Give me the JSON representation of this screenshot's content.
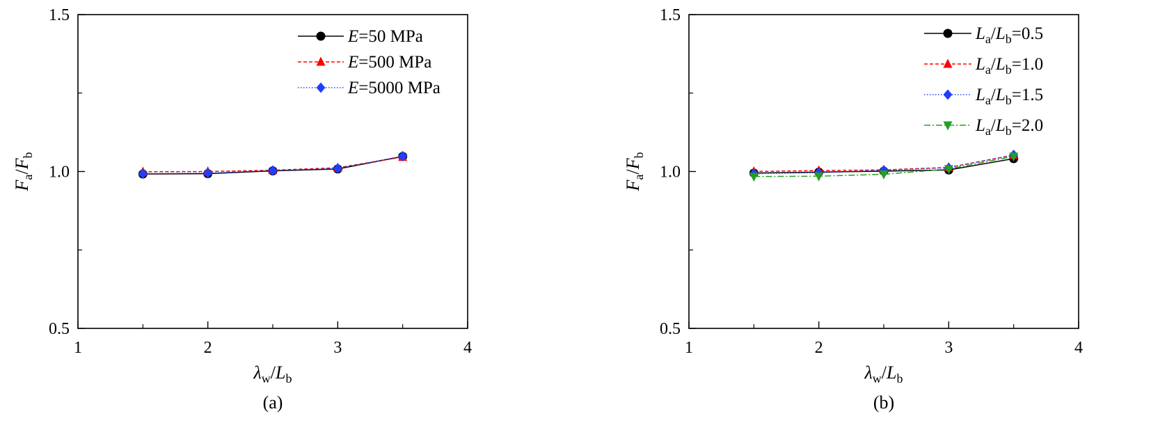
{
  "chart_data": [
    {
      "type": "line",
      "panel_label": "(a)",
      "xlim": [
        1,
        4
      ],
      "ylim": [
        0.5,
        1.5
      ],
      "xticks": [
        1,
        2,
        3,
        4
      ],
      "xtick_labels": [
        "1",
        "2",
        "3",
        "4"
      ],
      "yticks": [
        0.5,
        1.0,
        1.5
      ],
      "ytick_labels": [
        "0.5",
        "1.0",
        "1.5"
      ],
      "xlabel": {
        "main": "λ",
        "sub": "w",
        "mid": "/",
        "main2": "L",
        "sub2": "b"
      },
      "ylabel": {
        "main": "F",
        "sub": "a",
        "mid": "/",
        "main2": "F",
        "sub2": "b"
      },
      "legend_position": "top-right",
      "x": [
        1.5,
        2.0,
        2.5,
        3.0,
        3.5
      ],
      "series": [
        {
          "legend_italic": "E",
          "legend_rest": "=50 MPa",
          "marker": "circle",
          "line": "solid",
          "color": "#000000",
          "values": [
            0.992,
            0.993,
            1.002,
            1.008,
            1.048
          ]
        },
        {
          "legend_italic": "E",
          "legend_rest": "=500 MPa",
          "marker": "triangle-up",
          "line": "dashed",
          "color": "#ff0000",
          "values": [
            0.999,
            1.0,
            1.004,
            1.012,
            1.046
          ]
        },
        {
          "legend_italic": "E",
          "legend_rest": "=5000 MPa",
          "marker": "diamond",
          "line": "dotted",
          "color": "#1f3fff",
          "values": [
            0.993,
            0.995,
            1.003,
            1.01,
            1.049
          ]
        }
      ]
    },
    {
      "type": "line",
      "panel_label": "(b)",
      "xlim": [
        1,
        4
      ],
      "ylim": [
        0.5,
        1.5
      ],
      "xticks": [
        1,
        2,
        3,
        4
      ],
      "xtick_labels": [
        "1",
        "2",
        "3",
        "4"
      ],
      "yticks": [
        0.5,
        1.0,
        1.5
      ],
      "ytick_labels": [
        "0.5",
        "1.0",
        "1.5"
      ],
      "xlabel": {
        "main": "λ",
        "sub": "w",
        "mid": "/",
        "main2": "L",
        "sub2": "b"
      },
      "ylabel": {
        "main": "F",
        "sub": "a",
        "mid": "/",
        "main2": "F",
        "sub2": "b"
      },
      "legend_position": "top-right",
      "x": [
        1.5,
        2.0,
        2.5,
        3.0,
        3.5
      ],
      "series": [
        {
          "legend_ratio": [
            "L",
            "a",
            "/",
            "L",
            "b",
            "=0.5"
          ],
          "marker": "circle",
          "line": "solid",
          "color": "#000000",
          "values": [
            0.995,
            0.998,
            1.001,
            1.005,
            1.041
          ]
        },
        {
          "legend_ratio": [
            "L",
            "a",
            "/",
            "L",
            "b",
            "=1.0"
          ],
          "marker": "triangle-up",
          "line": "dashed",
          "color": "#ff0000",
          "values": [
            1.0,
            1.003,
            1.005,
            1.013,
            1.052
          ]
        },
        {
          "legend_ratio": [
            "L",
            "a",
            "/",
            "L",
            "b",
            "=1.5"
          ],
          "marker": "diamond",
          "line": "dotted",
          "color": "#1f3fff",
          "values": [
            0.993,
            0.996,
            1.004,
            1.012,
            1.053
          ]
        },
        {
          "legend_ratio": [
            "L",
            "a",
            "/",
            "L",
            "b",
            "=2.0"
          ],
          "marker": "triangle-down",
          "line": "dashdot",
          "color": "#22a022",
          "values": [
            0.984,
            0.985,
            0.991,
            1.008,
            1.048
          ]
        }
      ]
    }
  ]
}
